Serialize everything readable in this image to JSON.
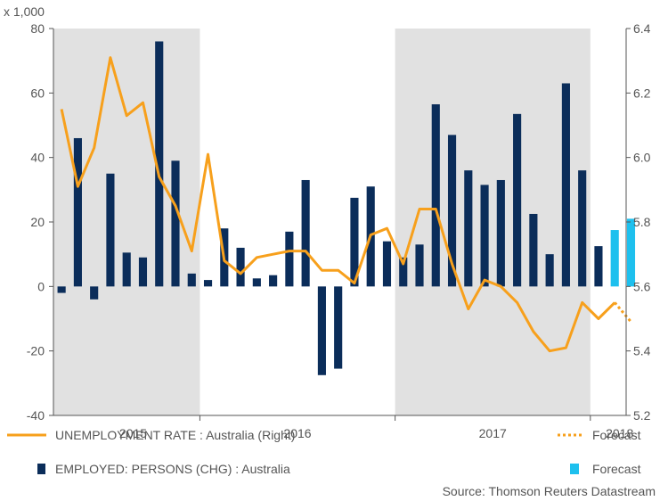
{
  "chart_data": {
    "type": "bar+line",
    "unit_label": "x 1,000",
    "years": [
      "2015",
      "2016",
      "2017",
      "2018"
    ],
    "left_axis": {
      "min": -40,
      "max": 80,
      "ticks": [
        "-40",
        "-20",
        "0",
        "20",
        "40",
        "60",
        "80"
      ]
    },
    "right_axis": {
      "min": 5.2,
      "max": 6.4,
      "ticks": [
        "5.2",
        "5.4",
        "5.6",
        "5.8",
        "6.0",
        "6.2",
        "6.4"
      ]
    },
    "shaded_periods": [
      {
        "start": 0,
        "end": 9
      },
      {
        "start": 21,
        "end": 33
      }
    ],
    "year_boundaries": [
      9,
      21,
      33
    ],
    "year_label_months": [
      4.4,
      14.5,
      26.5,
      34.3
    ],
    "span_months": 35.2,
    "series": [
      {
        "name": "EMPLOYED: PERSONS (CHG) : Australia",
        "kind": "bar",
        "axis": "left",
        "color": "#0b2d5a",
        "months": [
          0,
          1,
          2,
          3,
          4,
          5,
          6,
          7,
          8,
          9,
          10,
          11,
          12,
          13,
          14,
          15,
          16,
          17,
          18,
          19,
          20,
          21,
          22,
          23,
          24,
          25,
          26,
          27,
          28,
          29,
          30,
          31,
          32,
          33
        ],
        "values": [
          -2,
          46,
          -4,
          35,
          10.5,
          9,
          76,
          39,
          4,
          2,
          18,
          12,
          2.5,
          3.5,
          17,
          33,
          -27.5,
          -25.5,
          27.5,
          31,
          14,
          9,
          13,
          56.5,
          47,
          36,
          31.5,
          33,
          53.5,
          22.5,
          10,
          63,
          36,
          12.5
        ]
      },
      {
        "name": "EMPLOYED: PERSONS (CHG) : Australia — Forecast",
        "kind": "bar-forecast",
        "axis": "left",
        "color": "#1ec0ee",
        "months": [
          34,
          35
        ],
        "values": [
          17.5,
          21
        ]
      },
      {
        "name": "UNEMPLOYMENT RATE : Australia (Right)",
        "kind": "line",
        "axis": "right",
        "color": "#f7a01c",
        "months": [
          0,
          1,
          2,
          3,
          4,
          5,
          6,
          7,
          8,
          9,
          10,
          11,
          12,
          13,
          14,
          15,
          16,
          17,
          18,
          19,
          20,
          21,
          22,
          23,
          24,
          25,
          26,
          27,
          28,
          29,
          30,
          31,
          32,
          33,
          34
        ],
        "values": [
          6.15,
          5.91,
          6.03,
          6.31,
          6.13,
          6.17,
          5.94,
          5.85,
          5.71,
          6.01,
          5.68,
          5.64,
          5.69,
          5.7,
          5.71,
          5.71,
          5.65,
          5.65,
          5.61,
          5.76,
          5.78,
          5.67,
          5.84,
          5.84,
          5.67,
          5.53,
          5.62,
          5.6,
          5.55,
          5.46,
          5.4,
          5.41,
          5.55,
          5.5,
          5.55
        ]
      },
      {
        "name": "UNEMPLOYMENT RATE : Australia — Forecast",
        "kind": "line-forecast",
        "axis": "right",
        "color": "#f7a01c",
        "months": [
          34,
          35
        ],
        "values": [
          5.55,
          5.49
        ]
      }
    ],
    "legend": {
      "line_label": "UNEMPLOYMENT RATE : Australia (Right)",
      "bar_label": "EMPLOYED: PERSONS (CHG) : Australia",
      "forecast_line_label": "Forecast",
      "forecast_bar_label": "Forecast"
    },
    "source": "Source: Thomson Reuters Datastream",
    "colors": {
      "bar": "#0b2d5a",
      "bar_forecast": "#1ec0ee",
      "line": "#f7a01c",
      "shade": "#e1e1e1",
      "axis": "#555555",
      "text": "#555555"
    }
  }
}
